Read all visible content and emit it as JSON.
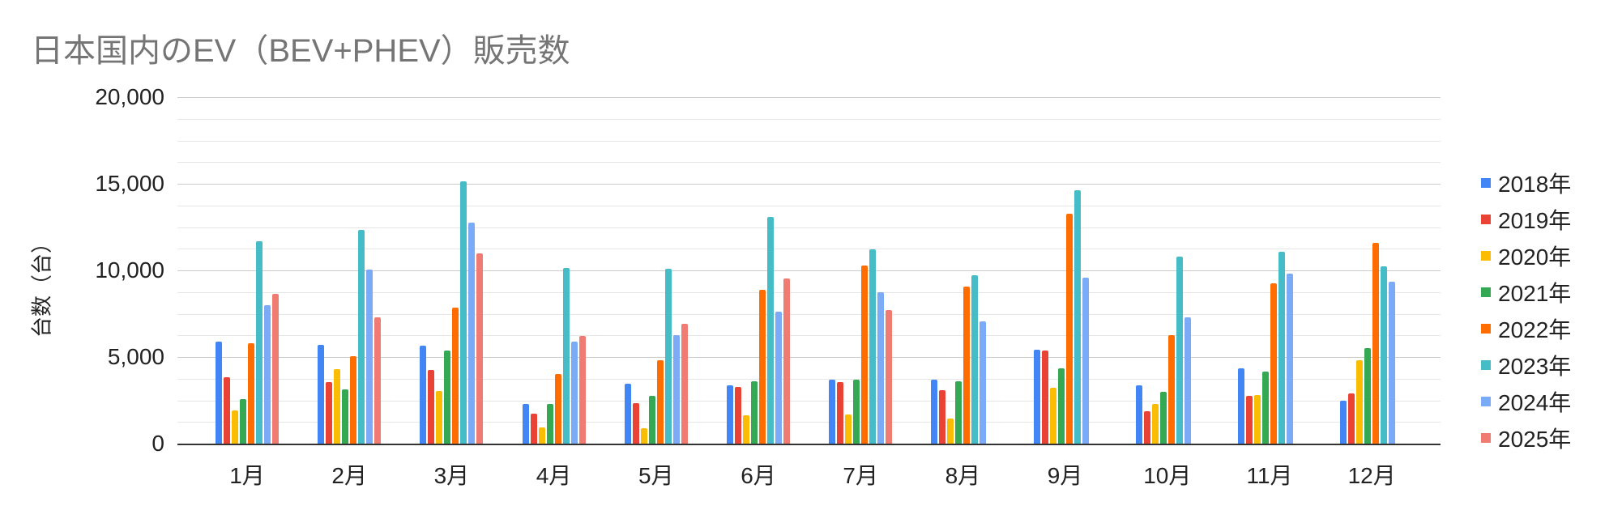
{
  "chart_data": {
    "type": "bar",
    "title": "日本国内のEV（BEV+PHEV）販売数",
    "xlabel": "",
    "ylabel": "台数（台）",
    "ylim": [
      0,
      20000
    ],
    "yticks": [
      0,
      5000,
      10000,
      15000,
      20000
    ],
    "ytick_labels": [
      "0",
      "5,000",
      "10,000",
      "15,000",
      "20,000"
    ],
    "minor_grid_step": 1250,
    "grid": true,
    "legend_position": "right",
    "categories": [
      "1月",
      "2月",
      "3月",
      "4月",
      "5月",
      "6月",
      "7月",
      "8月",
      "9月",
      "10月",
      "11月",
      "12月"
    ],
    "series": [
      {
        "name": "2018年",
        "color": "#4285F4",
        "values": [
          5900,
          5720,
          5640,
          2290,
          3460,
          3350,
          3690,
          3690,
          5420,
          3360,
          4350,
          2480
        ]
      },
      {
        "name": "2019年",
        "color": "#EA4335",
        "values": [
          3850,
          3540,
          4250,
          1730,
          2340,
          3250,
          3550,
          3080,
          5370,
          1870,
          2760,
          2900
        ]
      },
      {
        "name": "2020年",
        "color": "#FBBC04",
        "values": [
          1930,
          4310,
          3040,
          935,
          890,
          1620,
          1680,
          1450,
          3220,
          2290,
          2800,
          4810
        ]
      },
      {
        "name": "2021年",
        "color": "#34A853",
        "values": [
          2590,
          3150,
          5370,
          2290,
          2760,
          3580,
          3690,
          3600,
          4350,
          2990,
          4160,
          5510
        ]
      },
      {
        "name": "2022年",
        "color": "#FF6D01",
        "values": [
          5780,
          5050,
          7850,
          4020,
          4810,
          8860,
          10280,
          9070,
          13270,
          6260,
          9250,
          11590
        ]
      },
      {
        "name": "2023年",
        "color": "#46BDC6",
        "values": [
          11700,
          12350,
          15140,
          10140,
          10090,
          13070,
          11220,
          9720,
          14630,
          10790,
          11080,
          10230
        ]
      },
      {
        "name": "2024年",
        "color": "#7BAAF7",
        "values": [
          8010,
          10070,
          12740,
          5890,
          6260,
          7600,
          8740,
          7060,
          9580,
          7290,
          9810,
          9350
        ]
      },
      {
        "name": "2025年",
        "color": "#F07B72",
        "values": [
          8660,
          7310,
          10980,
          6210,
          6920,
          9520,
          7690,
          null,
          null,
          null,
          null,
          null
        ]
      }
    ]
  }
}
